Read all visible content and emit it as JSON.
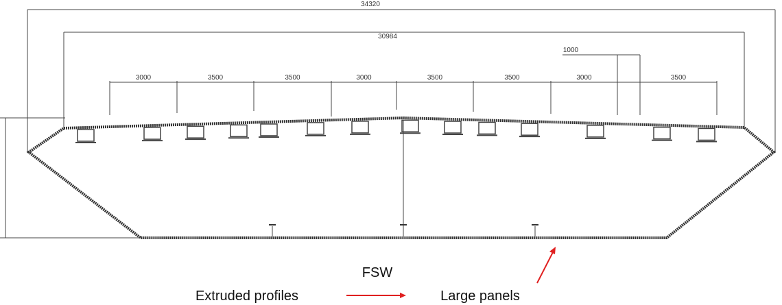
{
  "dimensions": {
    "overall": "34320",
    "inner": "30984",
    "gap": "1000",
    "spans": [
      "3000",
      "3500",
      "3500",
      "3000",
      "3500",
      "3500",
      "3000",
      "3500"
    ]
  },
  "captions": {
    "process": "FSW",
    "source": "Extruded profiles",
    "result": "Large panels"
  }
}
